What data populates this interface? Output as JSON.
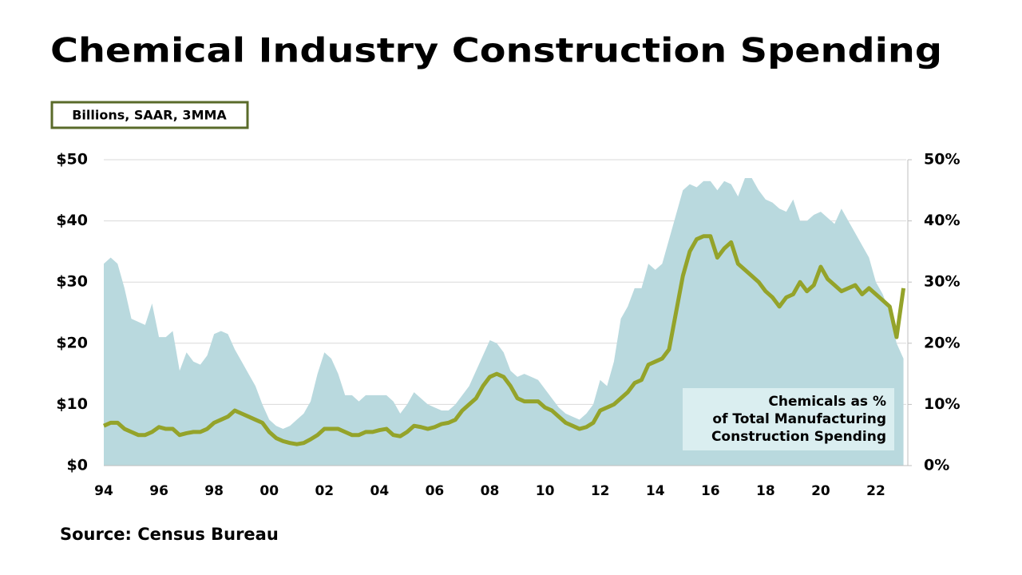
{
  "chart_data": {
    "type": "area-line",
    "title": "Chemical Industry Construction Spending",
    "unit_label": "Billions, SAAR, 3MMA",
    "annotation": [
      "Chemicals as %",
      "of Total Manufacturing",
      "Construction Spending"
    ],
    "source": "Source: Census Bureau",
    "x": [
      1994,
      1994.25,
      1994.5,
      1994.75,
      1995,
      1995.25,
      1995.5,
      1995.75,
      1996,
      1996.25,
      1996.5,
      1996.75,
      1997,
      1997.25,
      1997.5,
      1997.75,
      1998,
      1998.25,
      1998.5,
      1998.75,
      1999,
      1999.25,
      1999.5,
      1999.75,
      2000,
      2000.25,
      2000.5,
      2000.75,
      2001,
      2001.25,
      2001.5,
      2001.75,
      2002,
      2002.25,
      2002.5,
      2002.75,
      2003,
      2003.25,
      2003.5,
      2003.75,
      2004,
      2004.25,
      2004.5,
      2004.75,
      2005,
      2005.25,
      2005.5,
      2005.75,
      2006,
      2006.25,
      2006.5,
      2006.75,
      2007,
      2007.25,
      2007.5,
      2007.75,
      2008,
      2008.25,
      2008.5,
      2008.75,
      2009,
      2009.25,
      2009.5,
      2009.75,
      2010,
      2010.25,
      2010.5,
      2010.75,
      2011,
      2011.25,
      2011.5,
      2011.75,
      2012,
      2012.25,
      2012.5,
      2012.75,
      2013,
      2013.25,
      2013.5,
      2013.75,
      2014,
      2014.25,
      2014.5,
      2014.75,
      2015,
      2015.25,
      2015.5,
      2015.75,
      2016,
      2016.25,
      2016.5,
      2016.75,
      2017,
      2017.25,
      2017.5,
      2017.75,
      2018,
      2018.25,
      2018.5,
      2018.75,
      2019,
      2019.25,
      2019.5,
      2019.75,
      2020,
      2020.25,
      2020.5,
      2020.75,
      2021,
      2021.25,
      2021.5,
      2021.75,
      2022,
      2022.25,
      2022.5,
      2022.75,
      2023
    ],
    "series": [
      {
        "kind": "area",
        "color": "#b9d9de",
        "values": [
          33,
          34,
          33,
          29,
          24,
          23.5,
          23,
          26.5,
          21,
          21,
          22,
          15.5,
          18.5,
          17,
          16.5,
          18,
          21.5,
          22,
          21.5,
          19,
          17,
          15,
          13,
          10,
          7.5,
          6.5,
          6,
          6.5,
          7.5,
          8.5,
          10.5,
          15,
          18.5,
          17.5,
          15,
          11.5,
          11.5,
          10.5,
          11.5,
          11.5,
          11.5,
          11.5,
          10.5,
          8.5,
          10,
          12,
          11,
          10,
          9.5,
          9,
          9,
          10,
          11.5,
          13,
          15.5,
          18,
          20.5,
          20,
          18.5,
          15.5,
          14.5,
          15,
          14.5,
          14,
          12.5,
          11,
          9.5,
          8.5,
          8,
          7.5,
          8.5,
          10,
          14,
          13,
          17,
          24,
          26,
          29,
          29,
          33,
          32,
          33,
          37,
          41,
          45,
          46,
          45.5,
          46.5,
          46.5,
          45,
          46.5,
          46,
          44,
          47,
          47,
          45,
          43.5,
          43,
          42,
          41.5,
          43.5,
          40,
          40,
          41,
          41.5,
          40.5,
          39.5,
          42,
          40,
          38,
          36,
          34,
          30,
          28,
          25,
          20,
          17.5
        ]
      },
      {
        "kind": "line",
        "axis": "y2",
        "color": "#94a32a",
        "values": [
          6.5,
          7,
          7,
          6,
          5.5,
          5,
          5,
          5.5,
          6.3,
          6,
          6,
          5,
          5.3,
          5.5,
          5.5,
          6,
          7,
          7.5,
          8,
          9,
          8.5,
          8,
          7.5,
          7,
          5.5,
          4.5,
          4,
          3.7,
          3.5,
          3.7,
          4.3,
          5,
          6,
          6,
          6,
          5.5,
          5,
          5,
          5.5,
          5.5,
          5.8,
          6,
          5,
          4.8,
          5.5,
          6.5,
          6.3,
          6,
          6.3,
          6.8,
          7,
          7.5,
          9,
          10,
          11,
          13,
          14.5,
          15,
          14.5,
          13,
          11,
          10.5,
          10.5,
          10.5,
          9.5,
          9,
          8,
          7,
          6.5,
          6,
          6.3,
          7,
          9,
          9.5,
          10,
          11,
          12,
          13.5,
          14,
          16.5,
          17,
          17.5,
          19,
          25,
          31,
          35,
          37,
          37.5,
          37.5,
          34,
          35.5,
          36.5,
          33,
          32,
          31,
          30,
          28.5,
          27.5,
          26,
          27.5,
          28,
          30,
          28.5,
          29.5,
          32.5,
          30.5,
          29.5,
          28.5,
          29,
          29.5,
          28,
          29,
          28,
          27,
          26,
          21,
          29
        ]
      }
    ],
    "xlim": [
      1994,
      2023.1
    ],
    "xticks": [
      {
        "value": 1994,
        "label": "94"
      },
      {
        "value": 1996,
        "label": "96"
      },
      {
        "value": 1998,
        "label": "98"
      },
      {
        "value": 2000,
        "label": "00"
      },
      {
        "value": 2002,
        "label": "02"
      },
      {
        "value": 2004,
        "label": "04"
      },
      {
        "value": 2006,
        "label": "06"
      },
      {
        "value": 2008,
        "label": "08"
      },
      {
        "value": 2010,
        "label": "10"
      },
      {
        "value": 2012,
        "label": "12"
      },
      {
        "value": 2014,
        "label": "14"
      },
      {
        "value": 2016,
        "label": "16"
      },
      {
        "value": 2018,
        "label": "18"
      },
      {
        "value": 2020,
        "label": "20"
      },
      {
        "value": 2022,
        "label": "22"
      }
    ],
    "ylim": [
      0,
      50
    ],
    "yticks": [
      {
        "value": 0,
        "label": "$0"
      },
      {
        "value": 10,
        "label": "$10"
      },
      {
        "value": 20,
        "label": "$20"
      },
      {
        "value": 30,
        "label": "$30"
      },
      {
        "value": 40,
        "label": "$40"
      },
      {
        "value": 50,
        "label": "$50"
      }
    ],
    "y2lim": [
      0,
      50
    ],
    "y2ticks": [
      {
        "value": 0,
        "label": "0%"
      },
      {
        "value": 10,
        "label": "10%"
      },
      {
        "value": 20,
        "label": "20%"
      },
      {
        "value": 30,
        "label": "30%"
      },
      {
        "value": 40,
        "label": "40%"
      },
      {
        "value": 50,
        "label": "50%"
      }
    ],
    "grid": true
  }
}
